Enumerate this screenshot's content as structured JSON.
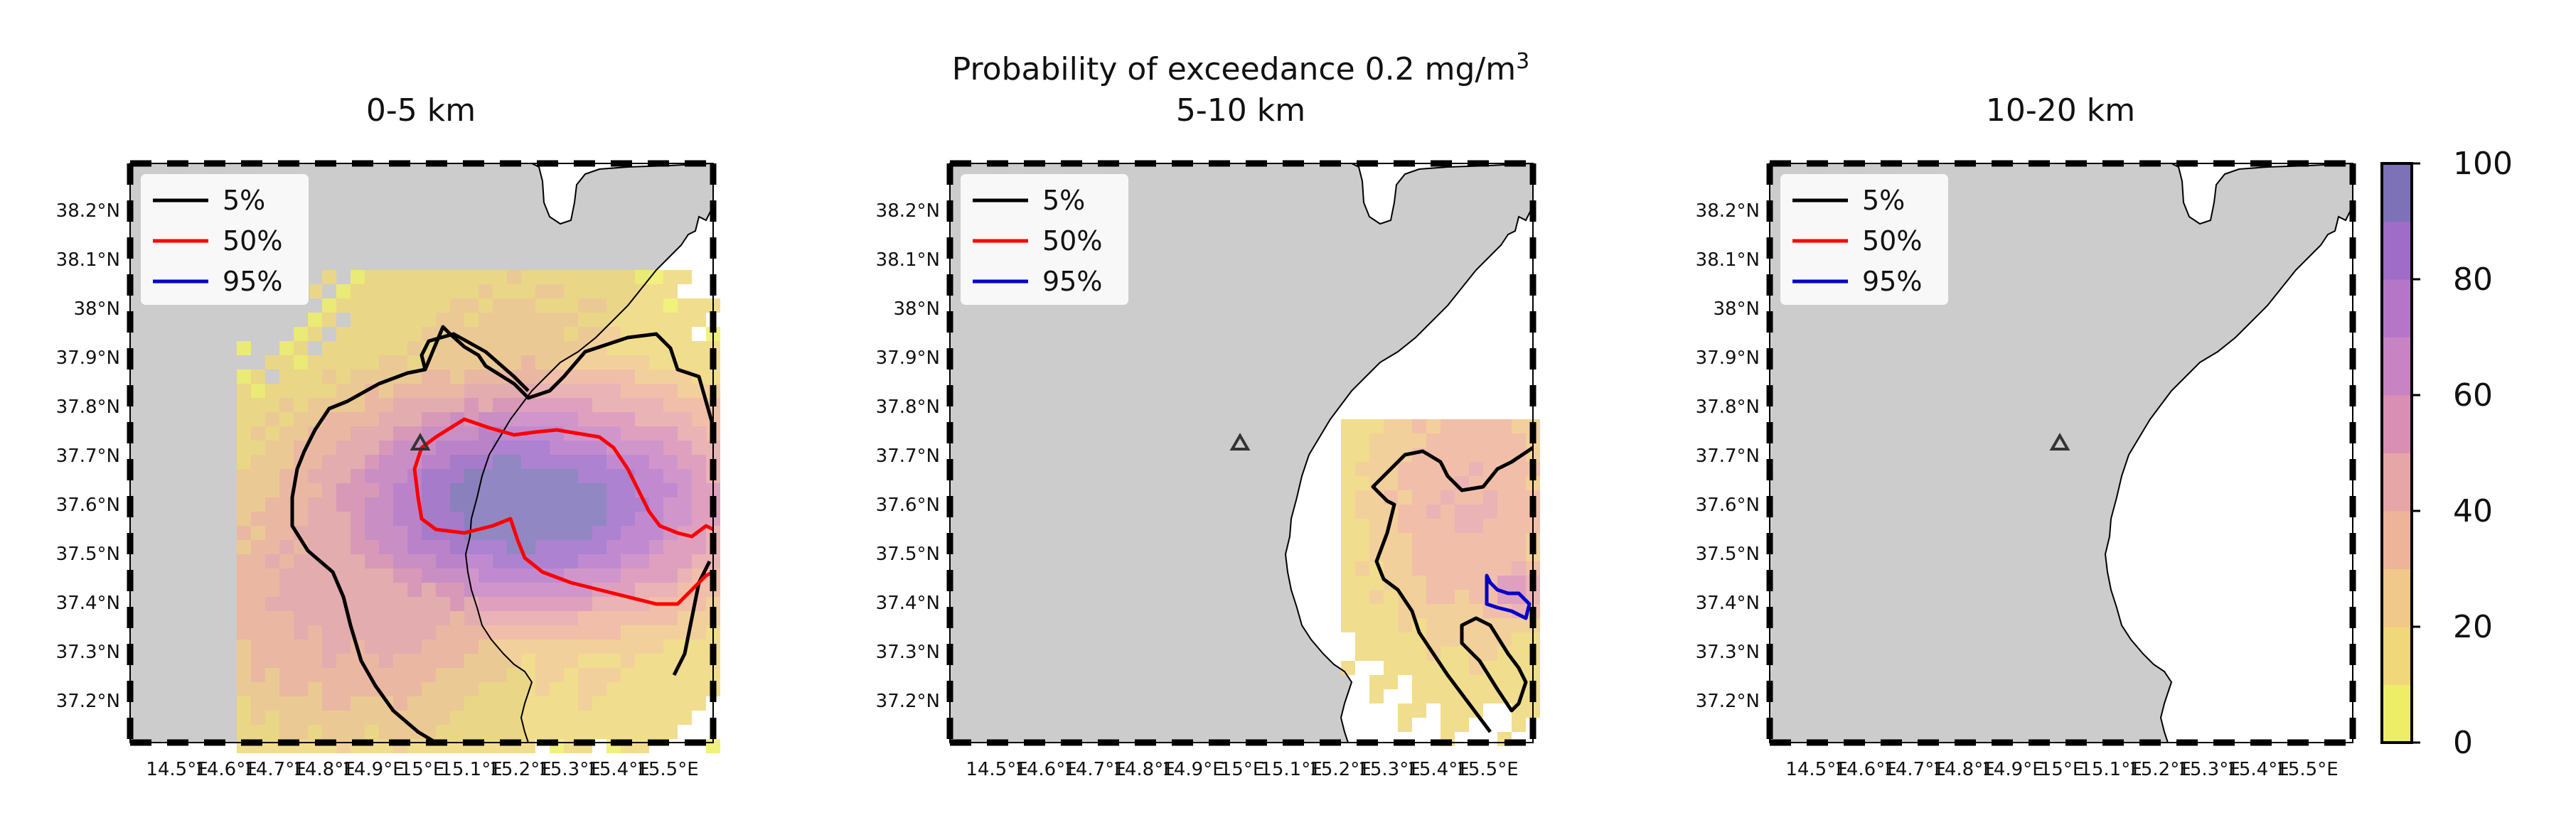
{
  "figure": {
    "suptitle_line1": "Probability of exceedance 0.2 mg/m",
    "suptitle_sup": "3",
    "panel_titles": [
      "0-5 km",
      "5-10 km",
      "10-20 km"
    ]
  },
  "legend": {
    "items": [
      {
        "label": "5%",
        "color": "#000000"
      },
      {
        "label": "50%",
        "color": "#ff0000"
      },
      {
        "label": "95%",
        "color": "#0000cc"
      }
    ]
  },
  "axes": {
    "lat_ticks": [
      "38.2°N",
      "38.1°N",
      "38°N",
      "37.9°N",
      "37.8°N",
      "37.7°N",
      "37.6°N",
      "37.5°N",
      "37.4°N",
      "37.3°N",
      "37.2°N"
    ],
    "lon_ticks": [
      "14.5°E",
      "14.6°E",
      "14.7°E",
      "14.8°E",
      "14.9°E",
      "15°E",
      "15.1°E",
      "15.2°E",
      "15.3°E",
      "15.4°E",
      "15.5°E"
    ]
  },
  "colorbar": {
    "ticks": [
      "0",
      "20",
      "40",
      "60",
      "80",
      "100"
    ],
    "colors": [
      "#eeee66",
      "#efd77a",
      "#f0c88a",
      "#eeb49a",
      "#e6a6a8",
      "#d98fb4",
      "#c884c2",
      "#b676c8",
      "#9f6cc8",
      "#7d72b8"
    ]
  },
  "colors": {
    "land": "#cccccc",
    "sea": "#ffffff",
    "volcano_marker": "#333333"
  }
}
